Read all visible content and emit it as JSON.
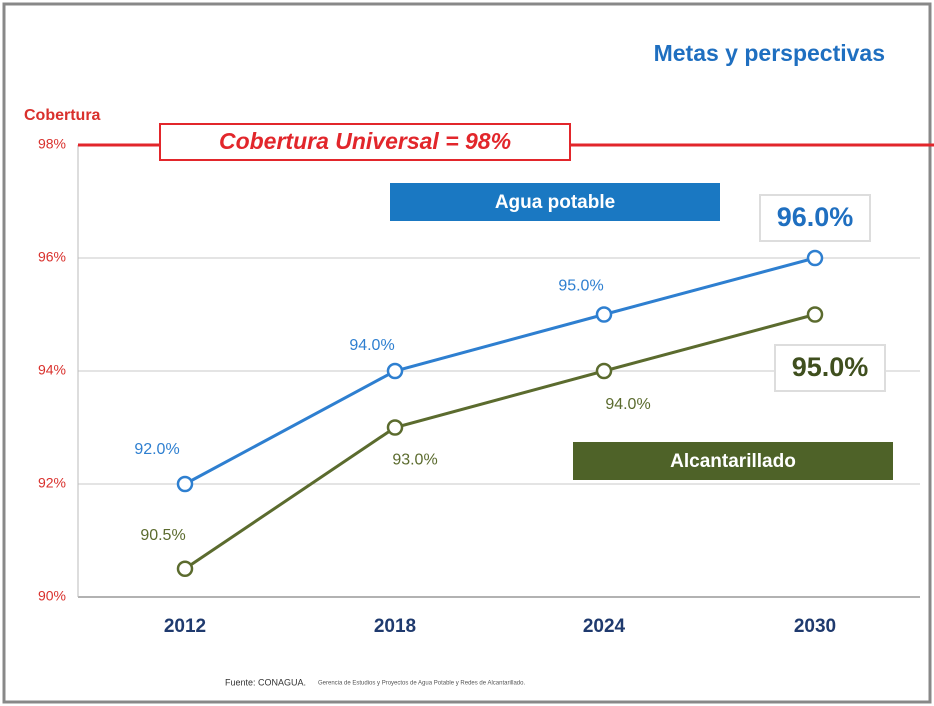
{
  "chart_data": {
    "type": "line",
    "title": "Metas y perspectivas",
    "y_label": "Cobertura",
    "categories": [
      "2012",
      "2018",
      "2024",
      "2030"
    ],
    "series": [
      {
        "name": "Agua potable",
        "color": "#2e7fd0",
        "values": [
          92,
          94,
          95,
          96
        ],
        "value_labels": [
          "92.0%",
          "94.0%",
          "95.0%",
          "96.0%"
        ]
      },
      {
        "name": "Alcantarillado",
        "color": "#5b6b2e",
        "values": [
          90.5,
          93,
          94,
          95
        ],
        "value_labels": [
          "90.5%",
          "93.0%",
          "94.0%",
          "95.0%"
        ]
      }
    ],
    "ylim": [
      90,
      98
    ],
    "yticks": [
      {
        "value": 90,
        "label": "90%"
      },
      {
        "value": 92,
        "label": "92%"
      },
      {
        "value": 94,
        "label": "94%"
      },
      {
        "value": 96,
        "label": "96%"
      },
      {
        "value": 98,
        "label": "98%"
      }
    ],
    "grid": true,
    "target": {
      "value": 98,
      "label": "Cobertura Universal =  98%",
      "color": "#e2262b"
    },
    "source": "Fuente: CONAGUA.",
    "source_detail": "Gerencia de Estudios y Proyectos de Agua Potable y Redes de Alcantarillado."
  }
}
